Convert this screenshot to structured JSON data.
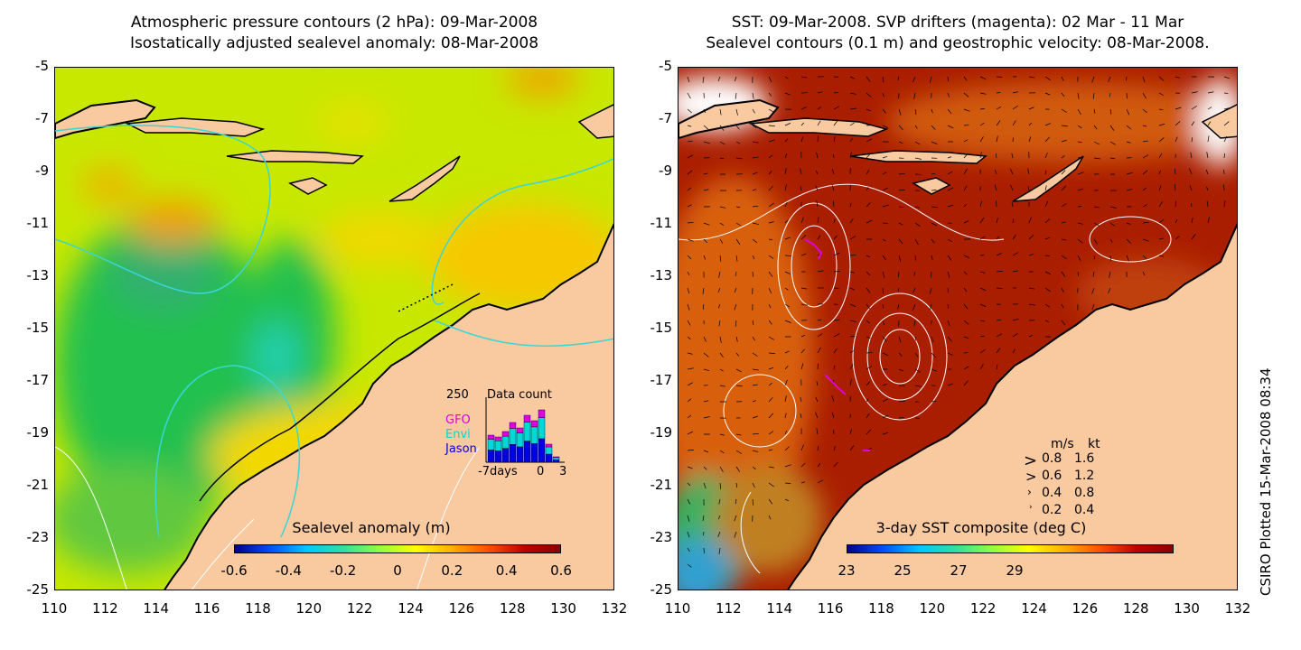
{
  "left_panel": {
    "title_line1": "Atmospheric pressure contours (2 hPa): 09-Mar-2008",
    "title_line2": "Isostatically adjusted sealevel anomaly: 08-Mar-2008",
    "colorbar_title": "Sealevel anomaly (m)",
    "colorbar_ticks": [
      "-0.6",
      "-0.4",
      "-0.2",
      "0",
      "0.2",
      "0.4",
      "0.6"
    ],
    "inset": {
      "max_count": "250",
      "title": "Data count",
      "legend": [
        "GFO",
        "Envi",
        "Jason"
      ],
      "xlabels": [
        "-7days",
        "0",
        "3"
      ]
    }
  },
  "right_panel": {
    "title_line1": "SST: 09-Mar-2008. SVP drifters (magenta): 02 Mar - 11 Mar",
    "title_line2": "Sealevel contours (0.1 m) and geostrophic velocity: 08-Mar-2008.",
    "colorbar_title": "3-day SST composite (deg C)",
    "colorbar_ticks": [
      "23",
      "25",
      "27",
      "29"
    ],
    "velocity_legend": {
      "header": [
        "m/s",
        "kt"
      ],
      "rows": [
        [
          "0.8",
          "1.6"
        ],
        [
          "0.6",
          "1.2"
        ],
        [
          "0.4",
          "0.8"
        ],
        [
          "0.2",
          "0.4"
        ]
      ]
    }
  },
  "axes": {
    "y_ticks": [
      "-5",
      "-7",
      "-9",
      "-11",
      "-13",
      "-15",
      "-17",
      "-19",
      "-21",
      "-23",
      "-25"
    ],
    "x_ticks": [
      "110",
      "112",
      "114",
      "116",
      "118",
      "120",
      "122",
      "124",
      "126",
      "128",
      "130",
      "132"
    ]
  },
  "credit": "CSIRO Plotted 15-Mar-2008 08:34",
  "colors": {
    "land": "#f9c9a0",
    "sla_low": "#00008b",
    "sla_high": "#8b0000",
    "sst_ocean": "#aa1e00",
    "contour_pressure": "#3ad6d6",
    "drifter": "#e000e0"
  }
}
